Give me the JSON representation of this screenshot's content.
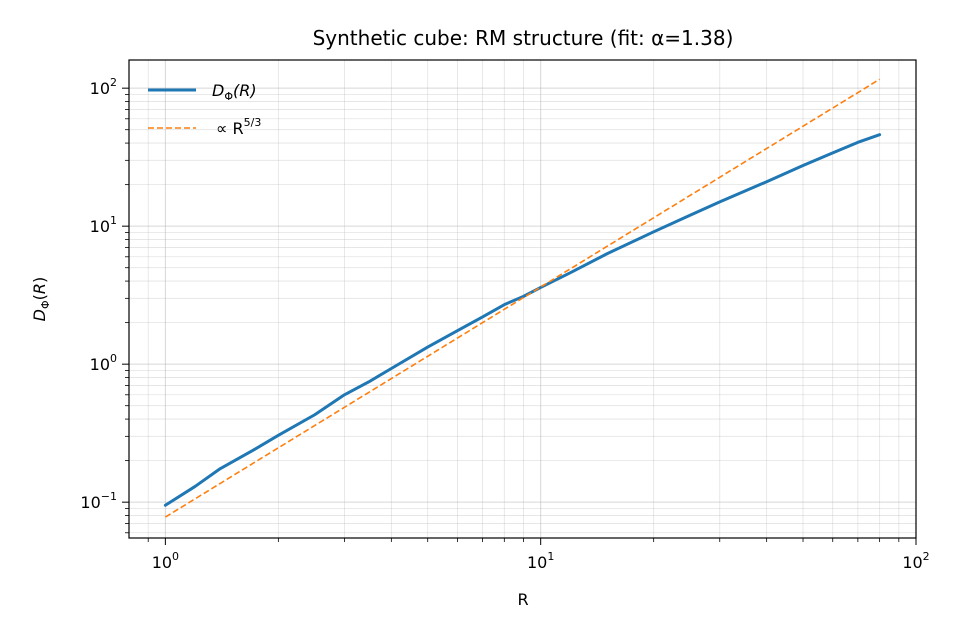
{
  "chart_data": {
    "type": "line",
    "title": "Synthetic cube: RM structure (fit: α=1.38)",
    "xlabel": "R",
    "ylabel": "D_Φ(R)",
    "xscale": "log",
    "yscale": "log",
    "xlim": [
      0.8,
      100
    ],
    "ylim": [
      0.055,
      160
    ],
    "grid": true,
    "legend_position": "upper-left",
    "x_ticks": [
      {
        "value": 1,
        "base": "10",
        "exp": "0"
      },
      {
        "value": 10,
        "base": "10",
        "exp": "1"
      },
      {
        "value": 100,
        "base": "10",
        "exp": "2"
      }
    ],
    "y_ticks": [
      {
        "value": 0.1,
        "base": "10",
        "exp": "−1"
      },
      {
        "value": 1,
        "base": "10",
        "exp": "0"
      },
      {
        "value": 10,
        "base": "10",
        "exp": "1"
      },
      {
        "value": 100,
        "base": "10",
        "exp": "2"
      }
    ],
    "series": [
      {
        "name": "D_Φ(R)",
        "legend_main": "D",
        "legend_sub": "Φ",
        "legend_tail": "(R)",
        "color": "#1f77b4",
        "style": "solid",
        "x": [
          1,
          1.2,
          1.4,
          1.7,
          2,
          2.5,
          3,
          3.5,
          4,
          5,
          6,
          7,
          8,
          9,
          10,
          12,
          15,
          20,
          25,
          30,
          40,
          50,
          60,
          70,
          80
        ],
        "y": [
          0.095,
          0.13,
          0.175,
          0.235,
          0.305,
          0.43,
          0.6,
          0.75,
          0.93,
          1.33,
          1.75,
          2.2,
          2.7,
          3.1,
          3.6,
          4.6,
          6.3,
          9.1,
          12,
          15,
          21,
          27.5,
          34,
          40.5,
          46
        ]
      },
      {
        "name": "∝ R^(5/3)",
        "legend_main": "∝ R",
        "legend_sup": "5/3",
        "color": "#ff7f0e",
        "style": "dashed",
        "x": [
          1,
          80
        ],
        "y": [
          0.078,
          116
        ]
      }
    ]
  }
}
